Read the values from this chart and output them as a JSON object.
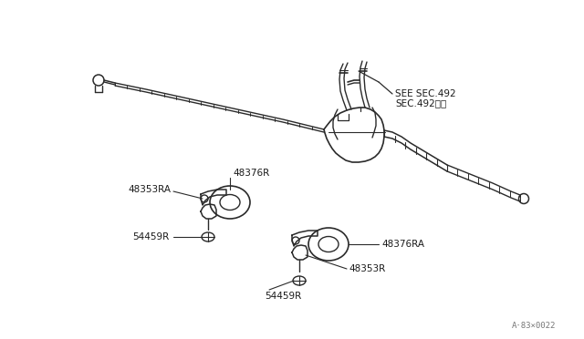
{
  "background_color": "#ffffff",
  "line_color": "#2a2a2a",
  "text_color": "#1a1a1a",
  "watermark": "A·83×0022",
  "label_SEE_SEC": "SEE SEC.492",
  "label_SEC_kanji": "SEC.492参照",
  "label_48376R": "48376R",
  "label_48353RA": "48353RA",
  "label_54459R_L": "54459R",
  "label_48376RA": "48376RA",
  "label_48353R": "48353R",
  "label_54459R_B": "54459R",
  "figsize": [
    6.4,
    3.72
  ],
  "dpi": 100
}
